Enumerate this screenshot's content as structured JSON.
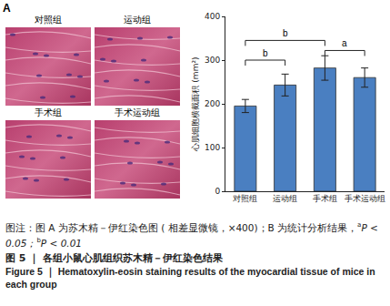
{
  "panel_a": {
    "letter": "A",
    "images": [
      {
        "label": "对照组"
      },
      {
        "label": "运动组"
      },
      {
        "label": "手术组"
      },
      {
        "label": "手术运动组"
      }
    ]
  },
  "chart_data": {
    "letter": "B",
    "type": "bar",
    "categories": [
      "对照组",
      "运动组",
      "手术组",
      "手术运动组"
    ],
    "values": [
      195,
      243,
      282,
      260
    ],
    "errors": [
      15,
      25,
      28,
      22
    ],
    "color": "#4a7fc1",
    "y_label": "心肌细胞横截面积 (mm²)",
    "ylim": [
      0,
      400
    ],
    "yticks": [
      0,
      100,
      200,
      300,
      400
    ],
    "grid": false,
    "comparisons": [
      {
        "from": "对照组",
        "to": "运动组",
        "y": 300,
        "label": "b"
      },
      {
        "from": "对照组",
        "to": "手术组",
        "y": 345,
        "label": "b"
      },
      {
        "from": "手术组",
        "to": "手术运动组",
        "y": 322,
        "label": "a"
      }
    ]
  },
  "caption": {
    "note": "图注：图 A 为苏木精－伊红染色图 ( 相差显微镜，×400)；B 为统计分析结果，",
    "significance": [
      {
        "mark": "a",
        "text": "P < 0.05；"
      },
      {
        "mark": "b",
        "text": "P < 0.01"
      }
    ],
    "title": "图 5 ｜ 各组小鼠心肌组织苏木精－伊红染色结果",
    "title_en": "Figure 5 ｜ Hematoxylin-eosin staining results of the myocardial tissue of mice in each group"
  }
}
